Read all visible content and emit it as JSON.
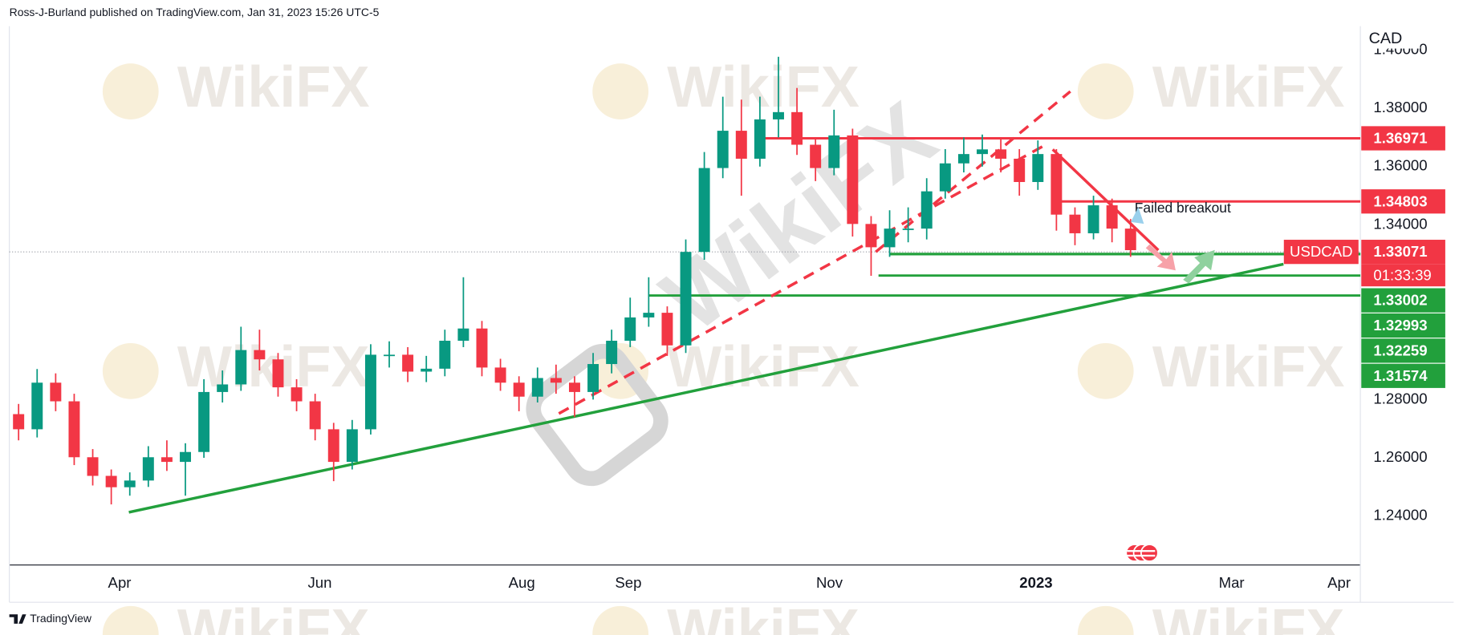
{
  "header": "Ross-J-Burland published on TradingView.com, Jan 31, 2023 15:26 UTC-5",
  "footer": "TradingView",
  "watermark": "WikiFX",
  "chart_data": {
    "type": "candlestick",
    "currency": "CAD",
    "annotation": "Failed breakout",
    "categories": [
      null,
      null,
      null,
      null,
      null,
      null,
      null,
      null,
      null,
      null,
      null,
      null,
      null,
      null,
      null,
      null,
      null,
      null,
      null,
      null,
      null,
      null,
      null,
      null,
      null,
      null,
      null,
      null,
      null,
      null,
      null,
      null,
      null,
      null,
      null,
      null,
      null,
      null,
      null,
      null,
      null,
      null,
      null,
      null,
      null,
      null,
      null,
      null,
      null,
      null,
      null,
      null,
      null,
      null,
      null,
      null,
      null,
      null,
      null,
      null,
      null
    ],
    "colors": {
      "up": "#089981",
      "down": "#f23645"
    },
    "series": [
      {
        "name": "USDCAD",
        "open": [
          1.275,
          1.2698,
          1.2858,
          1.2794,
          1.2602,
          1.2538,
          1.2499,
          1.2522,
          1.2602,
          1.2586,
          1.262,
          1.2826,
          1.2852,
          1.297,
          1.2938,
          1.2842,
          1.2794,
          1.2698,
          1.2586,
          1.2698,
          1.2954,
          1.2954,
          1.2896,
          1.2906,
          1.3002,
          1.3044,
          1.291,
          1.2858,
          1.281,
          1.2874,
          1.2858,
          1.2826,
          1.2922,
          1.3002,
          1.3082,
          1.3098,
          1.2986,
          1.3307,
          1.3595,
          1.3723,
          1.3627,
          1.3762,
          1.3787,
          1.3675,
          1.3595,
          1.3707,
          1.3403,
          1.3323,
          1.3387,
          1.3387,
          1.3515,
          1.3611,
          1.3643,
          1.3659,
          1.3627,
          1.3547,
          1.3643,
          1.3435,
          1.3371,
          1.3467,
          1.3387
        ],
        "high": [
          1.2785,
          1.2905,
          1.289,
          1.282,
          1.263,
          1.256,
          1.255,
          1.264,
          1.266,
          1.265,
          1.287,
          1.29,
          1.305,
          1.304,
          1.296,
          1.287,
          1.282,
          1.272,
          1.273,
          1.299,
          1.3,
          1.298,
          1.295,
          1.304,
          1.322,
          1.307,
          1.294,
          1.288,
          1.291,
          1.292,
          1.288,
          1.296,
          1.304,
          1.315,
          1.322,
          1.312,
          1.335,
          1.365,
          1.384,
          1.383,
          1.384,
          1.3977,
          1.387,
          1.37,
          1.3795,
          1.373,
          1.343,
          1.345,
          1.346,
          1.356,
          1.366,
          1.37,
          1.371,
          1.37,
          1.366,
          1.369,
          1.366,
          1.346,
          1.35,
          1.349,
          1.342
        ],
        "low": [
          1.266,
          1.267,
          1.276,
          1.2575,
          1.2505,
          1.244,
          1.247,
          1.25,
          1.2555,
          1.247,
          1.26,
          1.279,
          1.283,
          1.29,
          1.281,
          1.276,
          1.266,
          1.252,
          1.256,
          1.268,
          1.291,
          1.286,
          1.286,
          1.288,
          1.298,
          1.288,
          1.283,
          1.276,
          1.279,
          1.282,
          1.274,
          1.28,
          1.289,
          1.298,
          1.305,
          1.295,
          1.296,
          1.328,
          1.356,
          1.35,
          1.36,
          1.37,
          1.364,
          1.355,
          1.357,
          1.336,
          1.3225,
          1.329,
          1.334,
          1.335,
          1.349,
          1.358,
          1.36,
          1.358,
          1.35,
          1.352,
          1.338,
          1.333,
          1.335,
          1.334,
          1.329
        ],
        "close": [
          1.2698,
          1.2858,
          1.2794,
          1.2602,
          1.2538,
          1.2499,
          1.2522,
          1.2602,
          1.2586,
          1.262,
          1.2826,
          1.2852,
          1.297,
          1.2938,
          1.2842,
          1.2794,
          1.2698,
          1.2586,
          1.2698,
          1.2954,
          1.2954,
          1.2896,
          1.2906,
          1.3002,
          1.3044,
          1.291,
          1.2858,
          1.281,
          1.2874,
          1.2858,
          1.2826,
          1.2922,
          1.3002,
          1.3082,
          1.3098,
          1.2986,
          1.3307,
          1.3595,
          1.3723,
          1.3627,
          1.3762,
          1.3787,
          1.3675,
          1.3595,
          1.3707,
          1.3403,
          1.3323,
          1.3387,
          1.3387,
          1.3515,
          1.3611,
          1.3643,
          1.3659,
          1.3627,
          1.3547,
          1.3643,
          1.3435,
          1.3371,
          1.3467,
          1.3387,
          1.3313
        ]
      }
    ],
    "xlim": [
      -0.5,
      72.4
    ],
    "xticks": [
      {
        "value": 5.45,
        "label": "Apr"
      },
      {
        "value": 16.25,
        "label": "Jun"
      },
      {
        "value": 27.15,
        "label": "Aug"
      },
      {
        "value": 32.9,
        "label": "Sep"
      },
      {
        "value": 43.75,
        "label": "Nov"
      },
      {
        "value": 54.9,
        "label": "2023"
      },
      {
        "value": 65.45,
        "label": "Mar"
      },
      {
        "value": 71.25,
        "label": "Apr"
      }
    ],
    "ylim": [
      1.2232,
      1.4082
    ],
    "yticks": [
      {
        "value": 1.24,
        "label": "1.24000"
      },
      {
        "value": 1.26,
        "label": "1.26000"
      },
      {
        "value": 1.28,
        "label": "1.28000"
      },
      {
        "value": 1.34,
        "label": "1.34000"
      },
      {
        "value": 1.36,
        "label": "1.36000"
      },
      {
        "value": 1.38,
        "label": "1.38000"
      },
      {
        "value": 1.4,
        "label": "1.40000"
      }
    ],
    "grid": false,
    "levels": [
      {
        "value": 1.36971,
        "color": "#f23645",
        "from": 39.75
      },
      {
        "value": 1.34803,
        "color": "#f23645",
        "from": 55.9
      },
      {
        "value": 1.33071,
        "color": "#f23645",
        "countdown": "01:33:39",
        "line": "dotted"
      },
      {
        "value": 1.33002,
        "color": "#22a03c",
        "from": 47
      },
      {
        "value": 1.32993,
        "color": "#22a03c",
        "from": 47
      },
      {
        "value": 1.32259,
        "color": "#22a03c",
        "from": 46.4
      },
      {
        "value": 1.31574,
        "color": "#22a03c",
        "from": 34
      }
    ],
    "trendlines": [
      {
        "color": "#22a03c",
        "style": "solid",
        "points": [
          [
            5.95,
            1.2413
          ],
          [
            68.25,
            1.3265
          ]
        ]
      },
      {
        "color": "#f23645",
        "style": "dashed",
        "points": [
          [
            29.15,
            1.2752
          ],
          [
            55.25,
            1.3669
          ]
        ]
      },
      {
        "color": "#f23645",
        "style": "dashed",
        "points": [
          [
            46.25,
            1.3307
          ],
          [
            56.75,
            1.3858
          ]
        ]
      },
      {
        "color": "#f23645",
        "style": "solid",
        "points": [
          [
            55.8,
            1.3659
          ],
          [
            61.5,
            1.3313
          ]
        ]
      }
    ]
  }
}
